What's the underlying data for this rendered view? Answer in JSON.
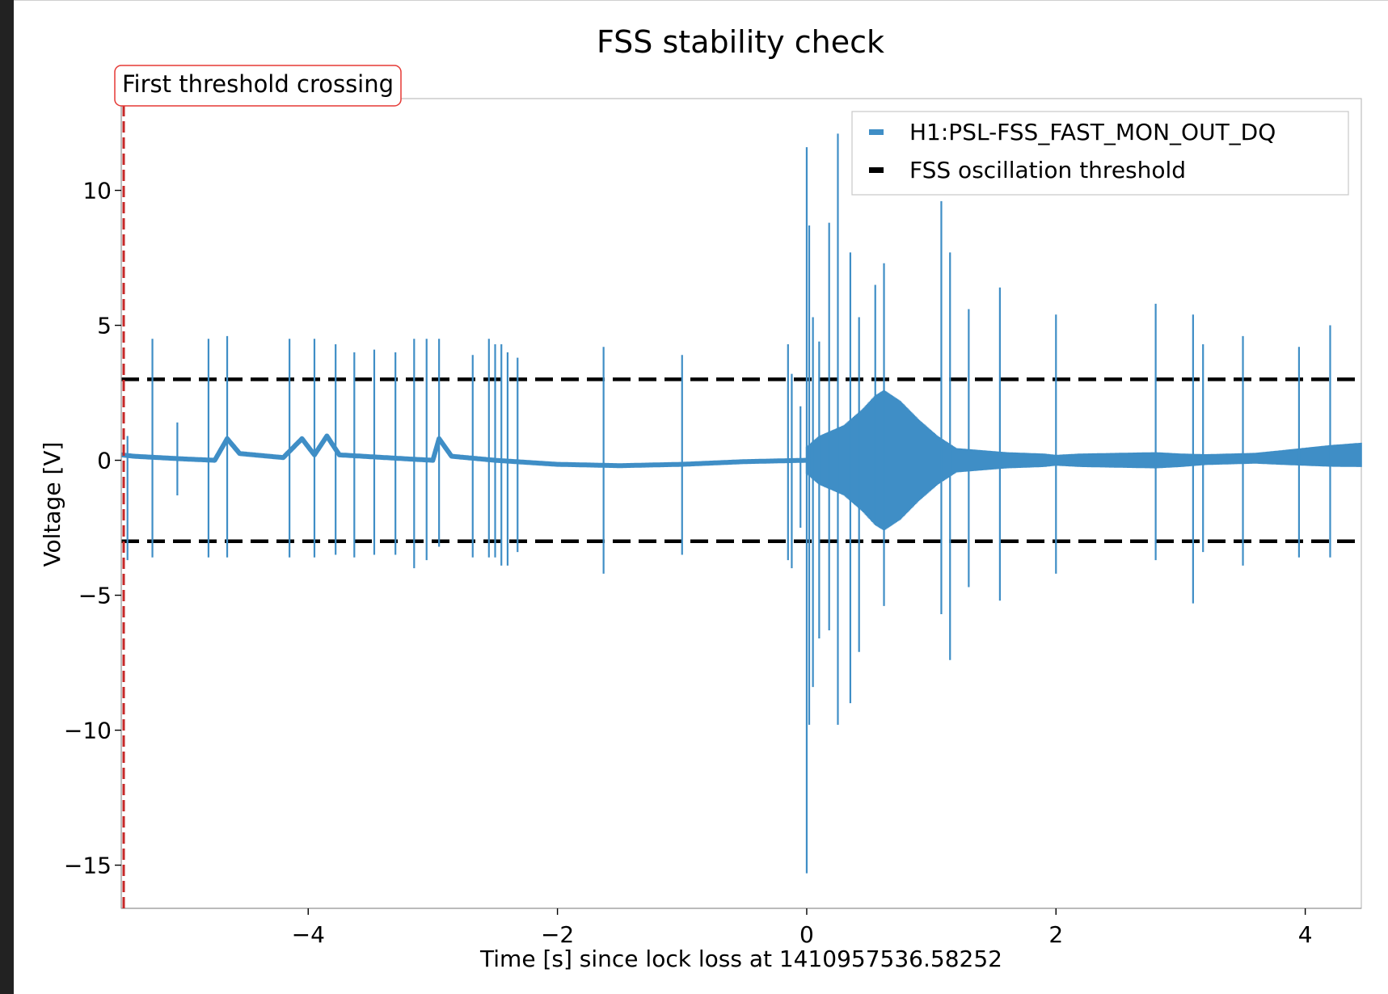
{
  "chart_data": {
    "type": "line",
    "title": "FSS stability check",
    "xlabel": "Time [s] since lock loss at 1410957536.58252",
    "ylabel": "Voltage [V]",
    "xlim": [
      -5.5,
      4.45
    ],
    "ylim": [
      -16.6,
      13.4
    ],
    "xticks": [
      -4,
      -2,
      0,
      2,
      4
    ],
    "xtick_labels": [
      "−4",
      "−2",
      "0",
      "2",
      "4"
    ],
    "yticks": [
      10,
      5,
      0,
      -5,
      -10,
      -15
    ],
    "ytick_labels": [
      "10",
      "5",
      "0",
      "−5",
      "−10",
      "−15"
    ],
    "grid": false,
    "legend_position": "top-right",
    "series": [
      {
        "name": "H1:PSL-FSS_FAST_MON_OUT_DQ",
        "color": "#3f8ec6",
        "baseline": [
          [
            -5.5,
            0.2
          ],
          [
            -5.4,
            0.15
          ],
          [
            -5.0,
            0.05
          ],
          [
            -4.75,
            0.0
          ],
          [
            -4.65,
            0.8
          ],
          [
            -4.55,
            0.25
          ],
          [
            -4.2,
            0.1
          ],
          [
            -4.05,
            0.8
          ],
          [
            -3.95,
            0.2
          ],
          [
            -3.85,
            0.9
          ],
          [
            -3.75,
            0.2
          ],
          [
            -3.2,
            0.05
          ],
          [
            -3.0,
            0.0
          ],
          [
            -2.95,
            0.8
          ],
          [
            -2.85,
            0.15
          ],
          [
            -2.5,
            0.0
          ],
          [
            -2.0,
            -0.15
          ],
          [
            -1.5,
            -0.2
          ],
          [
            -1.0,
            -0.15
          ],
          [
            -0.5,
            -0.05
          ],
          [
            0.0,
            0.0
          ],
          [
            2.0,
            0.0
          ],
          [
            3.0,
            0.0
          ],
          [
            3.8,
            0.1
          ],
          [
            4.45,
            0.2
          ]
        ],
        "burst_envelope": [
          [
            0.0,
            0.5
          ],
          [
            0.1,
            0.9
          ],
          [
            0.3,
            1.3
          ],
          [
            0.45,
            1.9
          ],
          [
            0.55,
            2.4
          ],
          [
            0.62,
            2.6
          ],
          [
            0.75,
            2.2
          ],
          [
            0.9,
            1.5
          ],
          [
            1.05,
            0.9
          ],
          [
            1.2,
            0.45
          ],
          [
            1.6,
            0.3
          ],
          [
            1.9,
            0.25
          ],
          [
            2.0,
            0.2
          ],
          [
            2.2,
            0.25
          ],
          [
            2.8,
            0.3
          ],
          [
            3.2,
            0.2
          ],
          [
            3.6,
            0.2
          ],
          [
            3.9,
            0.3
          ],
          [
            4.2,
            0.4
          ],
          [
            4.45,
            0.45
          ]
        ],
        "spikes": [
          [
            -5.45,
            0.9,
            -3.7
          ],
          [
            -5.25,
            4.5,
            -3.6
          ],
          [
            -5.05,
            1.4,
            -1.3
          ],
          [
            -4.8,
            4.5,
            -3.6
          ],
          [
            -4.65,
            4.6,
            -3.6
          ],
          [
            -4.15,
            4.5,
            -3.6
          ],
          [
            -3.95,
            4.5,
            -3.6
          ],
          [
            -3.78,
            4.3,
            -3.5
          ],
          [
            -3.63,
            4.0,
            -3.6
          ],
          [
            -3.47,
            4.1,
            -3.5
          ],
          [
            -3.3,
            4.0,
            -3.5
          ],
          [
            -3.15,
            4.5,
            -4.0
          ],
          [
            -3.05,
            4.5,
            -3.7
          ],
          [
            -2.95,
            4.5,
            -3.2
          ],
          [
            -2.68,
            3.9,
            -3.6
          ],
          [
            -2.55,
            4.5,
            -3.6
          ],
          [
            -2.5,
            4.3,
            -3.6
          ],
          [
            -2.45,
            4.3,
            -3.9
          ],
          [
            -2.4,
            4.0,
            -3.9
          ],
          [
            -2.32,
            3.8,
            -3.4
          ],
          [
            -1.63,
            4.2,
            -4.2
          ],
          [
            -1.0,
            3.9,
            -3.5
          ],
          [
            -0.15,
            4.3,
            -3.7
          ],
          [
            -0.12,
            3.2,
            -4.0
          ],
          [
            -0.05,
            2.0,
            -2.5
          ],
          [
            0.0,
            11.6,
            -15.3
          ],
          [
            0.02,
            8.7,
            -9.8
          ],
          [
            0.05,
            5.3,
            -8.4
          ],
          [
            0.1,
            4.4,
            -6.6
          ],
          [
            0.18,
            8.8,
            -6.3
          ],
          [
            0.25,
            12.1,
            -9.8
          ],
          [
            0.35,
            7.7,
            -9.0
          ],
          [
            0.42,
            5.3,
            -7.1
          ],
          [
            0.55,
            6.5,
            -2.3
          ],
          [
            0.62,
            7.3,
            -5.4
          ],
          [
            1.08,
            9.6,
            -5.7
          ],
          [
            1.15,
            7.7,
            -7.4
          ],
          [
            1.3,
            5.6,
            -4.7
          ],
          [
            1.55,
            6.4,
            -5.2
          ],
          [
            2.0,
            5.4,
            -4.2
          ],
          [
            2.8,
            5.8,
            -3.7
          ],
          [
            3.1,
            5.4,
            -5.3
          ],
          [
            3.18,
            4.3,
            -3.4
          ],
          [
            3.5,
            4.6,
            -3.9
          ],
          [
            3.95,
            4.2,
            -3.6
          ],
          [
            4.2,
            5.0,
            -3.6
          ]
        ]
      },
      {
        "name": "FSS oscillation threshold",
        "color": "#000000",
        "x": [
          -5.5,
          4.45
        ],
        "y_upper": 3,
        "y_lower": -3
      }
    ],
    "annotations": [
      {
        "text": "First threshold crossing",
        "x": -5.5,
        "style": "dashed vertical line with rounded label box",
        "color": "#cc2222"
      }
    ]
  }
}
